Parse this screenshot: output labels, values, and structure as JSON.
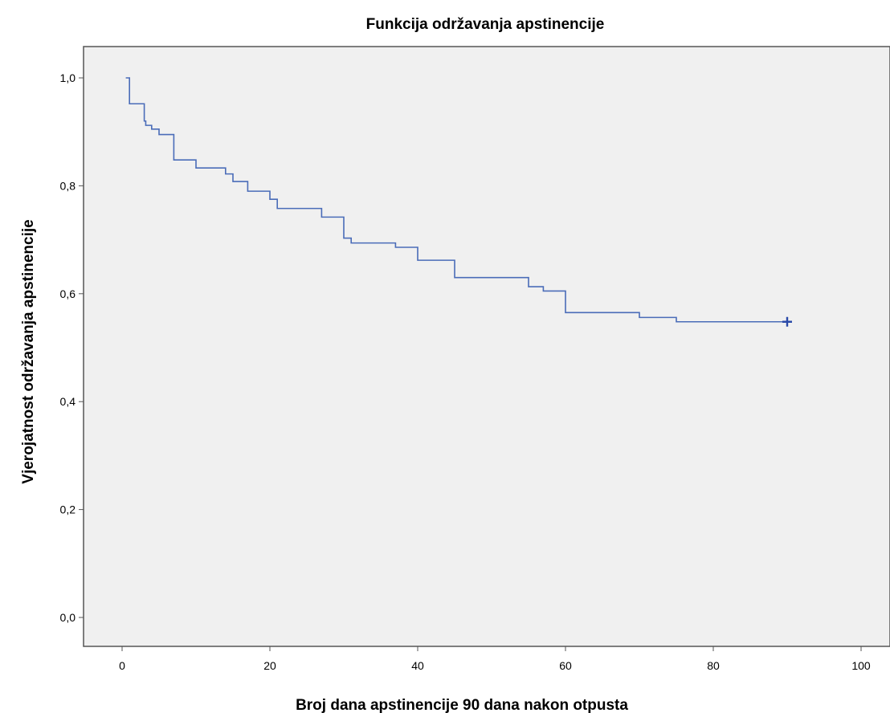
{
  "chart_data": {
    "type": "line",
    "step": true,
    "title": "Funkcija održavanja apstinencije",
    "xlabel": "Broj dana apstinencije 90 dana nakon otpusta",
    "ylabel": "Vjerojatnost održavanja apstinencije",
    "xlim": [
      0,
      100
    ],
    "ylim": [
      0,
      1
    ],
    "x_ticks": [
      0,
      20,
      40,
      60,
      80,
      100
    ],
    "x_tick_labels": [
      "0",
      "20",
      "40",
      "60",
      "80",
      "100"
    ],
    "y_ticks": [
      0,
      0.2,
      0.4,
      0.6,
      0.8,
      1.0
    ],
    "y_tick_labels": [
      "0,0",
      "0,2",
      "0,4",
      "0,6",
      "0,8",
      "1,0"
    ],
    "grid": false,
    "background_color": "#f0f0f0",
    "line_color": "#4a6cb8",
    "series": [
      {
        "x": [
          0.5,
          1,
          3,
          3.2,
          4,
          5,
          7,
          10,
          14,
          15,
          17,
          20,
          21,
          27,
          30,
          31,
          37,
          40,
          45,
          55,
          57,
          60,
          70,
          75,
          90
        ],
        "values": [
          1.0,
          0.952,
          0.92,
          0.912,
          0.905,
          0.895,
          0.848,
          0.833,
          0.822,
          0.808,
          0.79,
          0.775,
          0.758,
          0.742,
          0.703,
          0.694,
          0.686,
          0.662,
          0.63,
          0.613,
          0.605,
          0.565,
          0.556,
          0.548,
          0.548
        ],
        "censored": [
          90
        ]
      }
    ]
  }
}
